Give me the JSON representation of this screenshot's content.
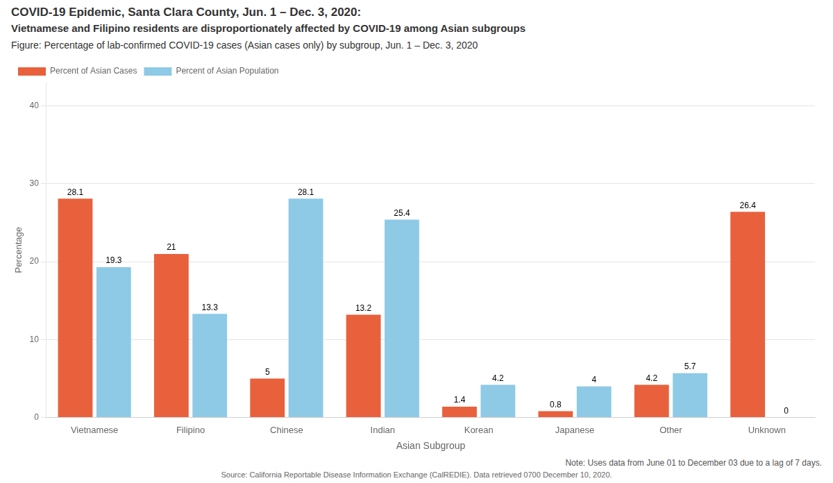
{
  "chart_data": {
    "type": "bar",
    "title": "COVID-19 Epidemic, Santa Clara County, Jun. 1 – Dec. 3, 2020:",
    "subtitle": "Vietnamese and Filipino residents are disproportionately affected by COVID-19 among Asian subgroups",
    "annotations": [
      "Figure: Percentage of lab-confirmed COVID-19 cases (Asian cases only) by subgroup, Jun. 1 – Dec. 3, 2020",
      "Note: Uses data from June 01 to December 03 due to a lag of 7 days.",
      "Source: California Reportable Disease Information Exchange (CalREDIE). Data retrieved 0700 December 10, 2020."
    ],
    "xlabel": "Asian Subgroup",
    "ylabel": "Percentage",
    "categories": [
      "Vietnamese",
      "Filipino",
      "Chinese",
      "Indian",
      "Korean",
      "Japanese",
      "Other",
      "Unknown"
    ],
    "series": [
      {
        "name": "Percent of Asian Cases",
        "color": "#E8613C",
        "values": [
          28.1,
          21.0,
          5.0,
          13.2,
          1.4,
          0.8,
          4.2,
          26.4
        ]
      },
      {
        "name": "Percent of Asian Population",
        "color": "#8ECAE6",
        "values": [
          19.3,
          13.3,
          28.1,
          25.4,
          4.2,
          4.0,
          5.7,
          0.0
        ]
      }
    ],
    "ylim": [
      0,
      43
    ],
    "yticks": [
      0,
      10,
      20,
      30,
      40
    ],
    "grid": true,
    "legend": "upper left",
    "data_labels": true
  }
}
